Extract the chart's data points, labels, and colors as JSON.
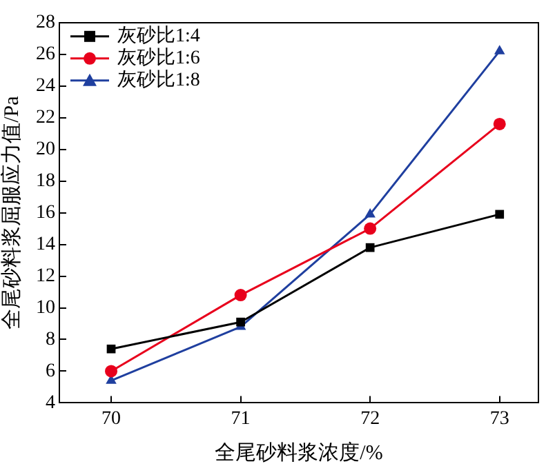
{
  "chart_data": {
    "type": "line",
    "xlabel": "全尾砂料浆浓度/%",
    "ylabel": "全尾砂料浆屈服应力值/Pa",
    "x": [
      70,
      71,
      72,
      73
    ],
    "xlim": [
      69.6,
      73.3
    ],
    "xticks": [
      70,
      71,
      72,
      73
    ],
    "ylim": [
      4,
      28
    ],
    "yticks": [
      4,
      6,
      8,
      10,
      12,
      14,
      16,
      18,
      20,
      22,
      24,
      26,
      28
    ],
    "grid": false,
    "legend": "top left",
    "series": [
      {
        "name": "灰砂比1:4",
        "color": "#000000",
        "marker": "square",
        "values": [
          7.4,
          9.1,
          13.8,
          15.9
        ]
      },
      {
        "name": "灰砂比1:6",
        "color": "#e8001c",
        "marker": "circle",
        "values": [
          6.0,
          10.8,
          15.0,
          21.6
        ]
      },
      {
        "name": "灰砂比1:8",
        "color": "#1f3f9f",
        "marker": "triangle",
        "values": [
          5.4,
          8.8,
          15.9,
          26.2
        ]
      }
    ]
  }
}
